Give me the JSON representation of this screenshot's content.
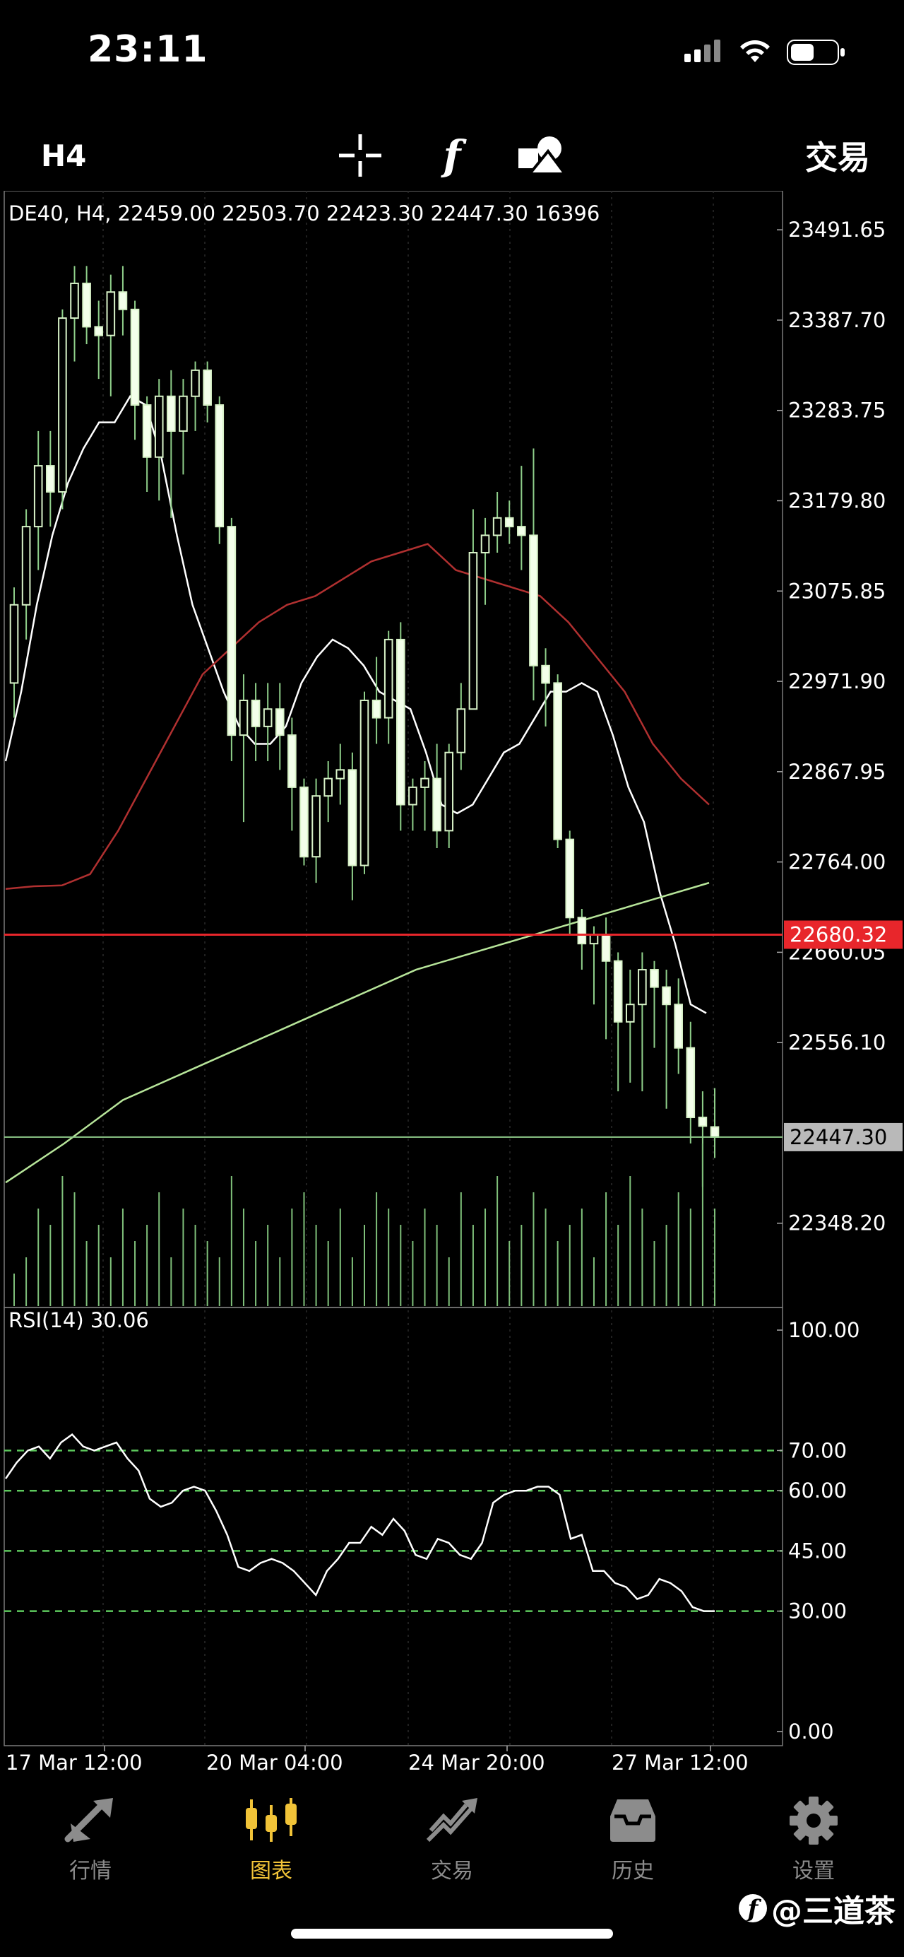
{
  "status_bar": {
    "time": "23:11"
  },
  "toolbar": {
    "timeframe": "H4",
    "function_glyph": "f",
    "trade_label": "交易"
  },
  "chart": {
    "header": "DE40, H4, 22459.00 22503.70 22423.30 22447.30 16396",
    "price_labels": [
      "23491.65",
      "23387.70",
      "23283.75",
      "23179.80",
      "23075.85",
      "22971.90",
      "22867.95",
      "22764.00",
      "22660.05",
      "22556.10",
      "22348.20"
    ],
    "ask_price": "22680.32",
    "bid_price": "22447.30",
    "rsi_title": "RSI(14) 30.06",
    "rsi_labels": [
      "100.00",
      "70.00",
      "60.00",
      "45.00",
      "30.00",
      "0.00"
    ],
    "x_labels": [
      "17 Mar 12:00",
      "20 Mar 04:00",
      "24 Mar 20:00",
      "27 Mar 12:00"
    ],
    "colors": {
      "ask_line": "#e8262b",
      "bid_line": "#8fc98a",
      "ma_white": "#ffffff",
      "ma_red": "#b03030",
      "ma_green": "#b7e59a",
      "rsi_levels": "#5dc95d",
      "volume": "#7fc07a"
    }
  },
  "chart_data": {
    "type": "candlestick",
    "symbol": "DE40",
    "timeframe": "H4",
    "ylim": [
      22300,
      23530
    ],
    "candles": [
      [
        22970,
        23080,
        22930,
        23060
      ],
      [
        23060,
        23170,
        23020,
        23150
      ],
      [
        23150,
        23260,
        23100,
        23220
      ],
      [
        23220,
        23260,
        23150,
        23190
      ],
      [
        23190,
        23400,
        23170,
        23390
      ],
      [
        23390,
        23450,
        23340,
        23430
      ],
      [
        23430,
        23450,
        23360,
        23380
      ],
      [
        23380,
        23410,
        23320,
        23370
      ],
      [
        23370,
        23440,
        23300,
        23420
      ],
      [
        23420,
        23450,
        23370,
        23400
      ],
      [
        23400,
        23410,
        23250,
        23290
      ],
      [
        23290,
        23300,
        23190,
        23230
      ],
      [
        23230,
        23320,
        23180,
        23300
      ],
      [
        23300,
        23330,
        23160,
        23260
      ],
      [
        23260,
        23320,
        23210,
        23300
      ],
      [
        23300,
        23340,
        23260,
        23330
      ],
      [
        23330,
        23340,
        23270,
        23290
      ],
      [
        23290,
        23300,
        23130,
        23150
      ],
      [
        23150,
        23160,
        22880,
        22910
      ],
      [
        22910,
        22980,
        22810,
        22950
      ],
      [
        22950,
        22970,
        22880,
        22920
      ],
      [
        22920,
        22970,
        22880,
        22940
      ],
      [
        22940,
        22970,
        22870,
        22910
      ],
      [
        22910,
        22930,
        22800,
        22850
      ],
      [
        22850,
        22860,
        22760,
        22770
      ],
      [
        22770,
        22860,
        22740,
        22840
      ],
      [
        22840,
        22880,
        22810,
        22860
      ],
      [
        22860,
        22900,
        22830,
        22870
      ],
      [
        22870,
        22890,
        22720,
        22760
      ],
      [
        22760,
        22960,
        22750,
        22950
      ],
      [
        22950,
        23000,
        22900,
        22930
      ],
      [
        22930,
        23030,
        22900,
        23020
      ],
      [
        23020,
        23040,
        22800,
        22830
      ],
      [
        22830,
        22860,
        22800,
        22850
      ],
      [
        22850,
        22880,
        22800,
        22860
      ],
      [
        22860,
        22900,
        22780,
        22800
      ],
      [
        22800,
        22900,
        22780,
        22890
      ],
      [
        22890,
        22970,
        22870,
        22940
      ],
      [
        22940,
        23170,
        22940,
        23120
      ],
      [
        23120,
        23160,
        23060,
        23140
      ],
      [
        23140,
        23190,
        23120,
        23160
      ],
      [
        23160,
        23180,
        23130,
        23150
      ],
      [
        23150,
        23220,
        23100,
        23140
      ],
      [
        23140,
        23240,
        22950,
        22990
      ],
      [
        22990,
        23010,
        22920,
        22970
      ],
      [
        22970,
        22980,
        22780,
        22790
      ],
      [
        22790,
        22800,
        22680,
        22700
      ],
      [
        22700,
        22710,
        22640,
        22670
      ],
      [
        22670,
        22690,
        22600,
        22680
      ],
      [
        22680,
        22700,
        22560,
        22650
      ],
      [
        22650,
        22660,
        22500,
        22580
      ],
      [
        22580,
        22640,
        22510,
        22600
      ],
      [
        22600,
        22660,
        22500,
        22640
      ],
      [
        22640,
        22650,
        22550,
        22620
      ],
      [
        22620,
        22640,
        22480,
        22600
      ],
      [
        22600,
        22630,
        22520,
        22550
      ],
      [
        22550,
        22580,
        22440,
        22470
      ],
      [
        22470,
        22500,
        22390,
        22460
      ],
      [
        22459,
        22503.7,
        22423.3,
        22447.3
      ]
    ],
    "ma_fast": [
      22880,
      22960,
      23060,
      23140,
      23200,
      23240,
      23270,
      23270,
      23300,
      23290,
      23230,
      23140,
      23060,
      23010,
      22960,
      22920,
      22900,
      22900,
      22920,
      22970,
      23000,
      23020,
      23010,
      22990,
      22960,
      22950,
      22940,
      22890,
      22830,
      22820,
      22830,
      22860,
      22890,
      22900,
      22930,
      22960,
      22960,
      22970,
      22960,
      22910,
      22850,
      22810,
      22730,
      22670,
      22600,
      22590
    ],
    "ma_slow": [
      22733,
      22736,
      22737,
      22750,
      22800,
      22860,
      22920,
      22980,
      23010,
      23040,
      23060,
      23070,
      23090,
      23110,
      23120,
      23130,
      23100,
      23090,
      23080,
      23070,
      23040,
      23000,
      22960,
      22900,
      22860,
      22830
    ],
    "ma_long": [
      22395,
      22440,
      22490,
      22520,
      22550,
      22580,
      22610,
      22640,
      22660,
      22680,
      22700,
      22720,
      22740
    ],
    "volume": [
      0.2,
      0.3,
      0.6,
      0.5,
      0.8,
      0.7,
      0.4,
      0.5,
      0.3,
      0.6,
      0.4,
      0.5,
      0.7,
      0.3,
      0.6,
      0.5,
      0.4,
      0.3,
      0.8,
      0.6,
      0.4,
      0.5,
      0.3,
      0.6,
      0.7,
      0.5,
      0.4,
      0.6,
      0.3,
      0.5,
      0.7,
      0.6,
      0.5,
      0.4,
      0.6,
      0.5,
      0.3,
      0.7,
      0.5,
      0.6,
      0.8,
      0.4,
      0.5,
      0.7,
      0.6,
      0.4,
      0.5,
      0.6,
      0.3,
      0.7,
      0.5,
      0.8,
      0.6,
      0.4,
      0.5,
      0.7,
      0.6,
      1.0,
      0.6
    ],
    "rsi": {
      "period": 14,
      "levels": [
        70,
        60,
        45,
        30
      ],
      "ylim": [
        0,
        100
      ],
      "values": [
        63,
        67,
        70,
        71,
        68,
        72,
        74,
        71,
        70,
        71,
        72,
        68,
        65,
        58,
        56,
        57,
        60,
        61,
        60,
        55,
        49,
        41,
        40,
        42,
        43,
        42,
        40,
        37,
        34,
        40,
        43,
        47,
        47,
        51,
        49,
        53,
        50,
        44,
        43,
        48,
        47,
        44,
        43,
        47,
        57,
        59,
        60,
        60,
        61,
        61,
        59,
        48,
        49,
        40,
        40,
        37,
        36,
        33,
        34,
        38,
        37,
        35,
        31,
        30,
        30
      ]
    },
    "x_labels": [
      "17 Mar 12:00",
      "20 Mar 04:00",
      "24 Mar 20:00",
      "27 Mar 12:00"
    ]
  },
  "nav": {
    "items": [
      {
        "label": "行情",
        "icon": "quotes-icon"
      },
      {
        "label": "图表",
        "icon": "chart-icon",
        "active": true
      },
      {
        "label": "交易",
        "icon": "trade-icon"
      },
      {
        "label": "历史",
        "icon": "history-icon"
      },
      {
        "label": "设置",
        "icon": "settings-icon"
      }
    ]
  },
  "watermark": {
    "text": "@三道茶",
    "logo_letter": "f"
  }
}
